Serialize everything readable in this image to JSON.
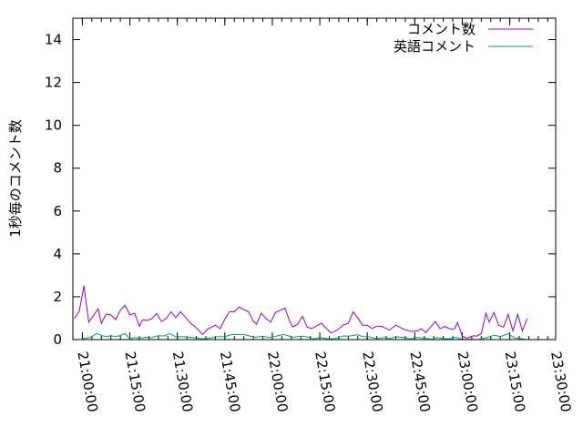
{
  "chart_data": {
    "type": "line",
    "title": "",
    "xlabel": "",
    "ylabel": "1秒毎のコメント数",
    "xlim": [
      "20:57:00",
      "23:29:30"
    ],
    "ylim": [
      0,
      15
    ],
    "grid": false,
    "legend_position": "top-right",
    "x_ticks": [
      "21:00:00",
      "21:15:00",
      "21:30:00",
      "21:45:00",
      "22:00:00",
      "22:15:00",
      "22:30:00",
      "22:45:00",
      "23:00:00",
      "23:15:00",
      "23:30:00"
    ],
    "y_ticks": [
      0,
      2,
      4,
      6,
      8,
      10,
      12,
      14
    ],
    "series": [
      {
        "name": "コメント数",
        "color": "#9400d3",
        "points": [
          [
            "20:57:30",
            0.98
          ],
          [
            "20:59:00",
            1.33
          ],
          [
            "21:00:30",
            2.51
          ],
          [
            "21:02:00",
            0.81
          ],
          [
            "21:03:30",
            1.12
          ],
          [
            "21:05:00",
            1.44
          ],
          [
            "21:06:00",
            0.76
          ],
          [
            "21:07:30",
            1.19
          ],
          [
            "21:09:00",
            1.15
          ],
          [
            "21:10:30",
            0.93
          ],
          [
            "21:12:00",
            1.37
          ],
          [
            "21:13:30",
            1.6
          ],
          [
            "21:15:00",
            1.15
          ],
          [
            "21:16:30",
            1.23
          ],
          [
            "21:18:00",
            0.62
          ],
          [
            "21:19:00",
            0.92
          ],
          [
            "21:20:30",
            0.89
          ],
          [
            "21:22:00",
            0.98
          ],
          [
            "21:23:30",
            1.22
          ],
          [
            "21:25:00",
            0.84
          ],
          [
            "21:26:30",
            0.98
          ],
          [
            "21:28:00",
            1.3
          ],
          [
            "21:29:30",
            1.03
          ],
          [
            "21:31:00",
            1.3
          ],
          [
            "21:32:30",
            1.05
          ],
          [
            "21:34:00",
            0.79
          ],
          [
            "21:35:30",
            0.62
          ],
          [
            "21:38:00",
            0.24
          ],
          [
            "21:39:30",
            0.48
          ],
          [
            "21:42:00",
            0.67
          ],
          [
            "21:43:30",
            0.51
          ],
          [
            "21:45:00",
            0.95
          ],
          [
            "21:46:30",
            1.3
          ],
          [
            "21:48:00",
            1.3
          ],
          [
            "21:49:30",
            1.52
          ],
          [
            "21:51:00",
            1.4
          ],
          [
            "21:52:30",
            1.3
          ],
          [
            "21:54:00",
            0.86
          ],
          [
            "21:55:00",
            0.72
          ],
          [
            "21:56:30",
            1.23
          ],
          [
            "21:58:00",
            0.98
          ],
          [
            "21:59:30",
            0.81
          ],
          [
            "22:01:00",
            1.26
          ],
          [
            "22:02:30",
            1.37
          ],
          [
            "22:04:00",
            1.47
          ],
          [
            "22:05:30",
            0.84
          ],
          [
            "22:06:30",
            0.59
          ],
          [
            "22:08:00",
            0.72
          ],
          [
            "22:09:30",
            1.09
          ],
          [
            "22:11:00",
            0.58
          ],
          [
            "22:12:30",
            0.52
          ],
          [
            "22:15:30",
            0.76
          ],
          [
            "22:18:30",
            0.31
          ],
          [
            "22:20:30",
            0.44
          ],
          [
            "22:22:30",
            0.69
          ],
          [
            "22:24:00",
            0.76
          ],
          [
            "22:25:30",
            1.29
          ],
          [
            "22:27:00",
            1.01
          ],
          [
            "22:28:30",
            0.67
          ],
          [
            "22:30:00",
            0.67
          ],
          [
            "22:31:30",
            0.52
          ],
          [
            "22:33:00",
            0.62
          ],
          [
            "22:34:30",
            0.62
          ],
          [
            "22:37:00",
            0.44
          ],
          [
            "22:39:00",
            0.67
          ],
          [
            "22:41:30",
            0.48
          ],
          [
            "22:44:00",
            0.38
          ],
          [
            "22:46:00",
            0.41
          ],
          [
            "22:47:00",
            0.51
          ],
          [
            "22:48:30",
            0.33
          ],
          [
            "22:51:30",
            0.84
          ],
          [
            "22:53:00",
            0.51
          ],
          [
            "22:54:30",
            0.61
          ],
          [
            "22:56:00",
            0.5
          ],
          [
            "22:57:30",
            0.5
          ],
          [
            "22:58:30",
            0.79
          ],
          [
            "23:00:00",
            0.16
          ],
          [
            "23:01:30",
            0.07
          ],
          [
            "23:03:30",
            0.18
          ],
          [
            "23:04:30",
            0.16
          ],
          [
            "23:06:00",
            0.27
          ],
          [
            "23:07:30",
            1.23
          ],
          [
            "23:08:30",
            0.81
          ],
          [
            "23:10:00",
            1.26
          ],
          [
            "23:11:30",
            0.67
          ],
          [
            "23:13:00",
            0.58
          ],
          [
            "23:14:30",
            1.18
          ],
          [
            "23:16:00",
            0.41
          ],
          [
            "23:17:30",
            1.18
          ],
          [
            "23:19:00",
            0.41
          ],
          [
            "23:20:30",
            0.98
          ]
        ]
      },
      {
        "name": "英語コメント",
        "color": "#009e73",
        "points": [
          [
            "21:00:00",
            0.03
          ],
          [
            "21:02:30",
            0.1
          ],
          [
            "21:04:30",
            0.28
          ],
          [
            "21:06:30",
            0.17
          ],
          [
            "21:08:00",
            0.13
          ],
          [
            "21:09:00",
            0.2
          ],
          [
            "21:10:00",
            0.13
          ],
          [
            "21:11:30",
            0.17
          ],
          [
            "21:13:30",
            0.28
          ],
          [
            "21:15:00",
            0.03
          ],
          [
            "21:16:30",
            0.1
          ],
          [
            "21:18:00",
            0.07
          ],
          [
            "21:20:00",
            0.11
          ],
          [
            "21:21:30",
            0.08
          ],
          [
            "21:24:00",
            0.18
          ],
          [
            "21:26:00",
            0.17
          ],
          [
            "21:27:30",
            0.28
          ],
          [
            "21:29:30",
            0.13
          ],
          [
            "21:32:00",
            0.13
          ],
          [
            "21:34:30",
            0.1
          ],
          [
            "21:38:00",
            0.03
          ],
          [
            "21:40:30",
            0.07
          ],
          [
            "21:42:30",
            0.14
          ],
          [
            "21:45:00",
            0.13
          ],
          [
            "21:47:00",
            0.23
          ],
          [
            "21:49:00",
            0.24
          ],
          [
            "21:51:00",
            0.24
          ],
          [
            "21:53:00",
            0.16
          ],
          [
            "21:55:00",
            0.11
          ],
          [
            "21:57:00",
            0.16
          ],
          [
            "21:59:00",
            0.1
          ],
          [
            "22:01:30",
            0.17
          ],
          [
            "22:03:30",
            0.24
          ],
          [
            "22:06:30",
            0.11
          ],
          [
            "22:09:30",
            0.16
          ],
          [
            "22:12:00",
            0.1
          ],
          [
            "22:13:00",
            0.02
          ],
          [
            "22:15:00",
            0.1
          ],
          [
            "22:17:30",
            0.04
          ],
          [
            "22:19:30",
            0.03
          ],
          [
            "22:22:30",
            0.17
          ],
          [
            "22:24:00",
            0.16
          ],
          [
            "22:27:00",
            0.23
          ],
          [
            "22:28:30",
            0.14
          ],
          [
            "22:30:30",
            0.13
          ],
          [
            "22:33:00",
            0.04
          ],
          [
            "22:35:30",
            0.1
          ],
          [
            "22:37:00",
            0.04
          ],
          [
            "22:39:00",
            0.13
          ],
          [
            "22:41:30",
            0.1
          ],
          [
            "22:43:30",
            0.03
          ],
          [
            "22:46:00",
            0.1
          ],
          [
            "22:48:30",
            0.06
          ],
          [
            "22:50:30",
            0.01
          ],
          [
            "22:52:00",
            0.1
          ],
          [
            "22:54:00",
            0.04
          ],
          [
            "22:56:00",
            0.04
          ],
          [
            "22:58:00",
            0.11
          ],
          [
            "23:00:00",
            0.01
          ],
          [
            "23:02:30",
            0.01
          ],
          [
            "23:05:00",
            0.0
          ],
          [
            "23:07:30",
            0.08
          ],
          [
            "23:10:00",
            0.21
          ],
          [
            "23:12:00",
            0.14
          ],
          [
            "23:14:30",
            0.27
          ],
          [
            "23:16:30",
            0.08
          ],
          [
            "23:19:00",
            0.04
          ],
          [
            "23:20:00",
            0.0
          ]
        ]
      }
    ]
  }
}
